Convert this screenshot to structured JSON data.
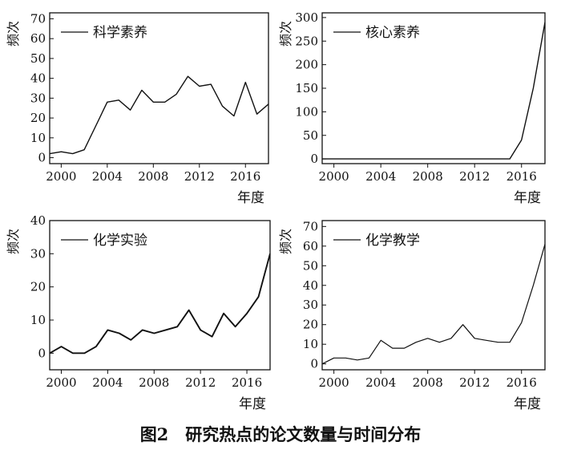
{
  "figure": {
    "caption": "图2　研究热点的论文数量与时间分布"
  },
  "chart_data": [
    {
      "type": "line",
      "ylabel": "频次",
      "xlabel": "年度",
      "legend": "top-left",
      "xlim": [
        1999,
        2018
      ],
      "ylim": [
        -3,
        73
      ],
      "xticks": [
        2000,
        2004,
        2008,
        2012,
        2016
      ],
      "yticks": [
        0,
        10,
        20,
        30,
        40,
        50,
        60,
        70
      ],
      "series": [
        {
          "name": "科学素养",
          "x": [
            1999,
            2000,
            2001,
            2002,
            2003,
            2004,
            2005,
            2006,
            2007,
            2008,
            2009,
            2010,
            2011,
            2012,
            2013,
            2014,
            2015,
            2016,
            2017,
            2018
          ],
          "y": [
            2,
            3,
            2,
            4,
            16,
            28,
            29,
            24,
            34,
            28,
            28,
            32,
            41,
            36,
            37,
            26,
            21,
            38,
            22,
            27
          ]
        }
      ]
    },
    {
      "type": "line",
      "ylabel": "频次",
      "xlabel": "年度",
      "legend": "top-left",
      "xlim": [
        1999,
        2018
      ],
      "ylim": [
        -10,
        310
      ],
      "xticks": [
        2000,
        2004,
        2008,
        2012,
        2016
      ],
      "yticks": [
        0,
        50,
        100,
        150,
        200,
        250,
        300
      ],
      "series": [
        {
          "name": "核心素养",
          "x": [
            1999,
            2000,
            2001,
            2002,
            2003,
            2004,
            2005,
            2006,
            2007,
            2008,
            2009,
            2010,
            2011,
            2012,
            2013,
            2014,
            2015,
            2016,
            2017,
            2018
          ],
          "y": [
            0,
            0,
            0,
            0,
            0,
            0,
            0,
            0,
            0,
            0,
            0,
            0,
            0,
            0,
            0,
            0,
            0,
            40,
            150,
            290
          ]
        }
      ]
    },
    {
      "type": "line",
      "ylabel": "频次",
      "xlabel": "年度",
      "legend": "top-left",
      "xlim": [
        1999,
        2018
      ],
      "ylim": [
        -5,
        40
      ],
      "xticks": [
        2000,
        2004,
        2008,
        2012,
        2016
      ],
      "yticks": [
        0,
        10,
        20,
        30,
        40
      ],
      "series": [
        {
          "name": "化学实验",
          "x": [
            1999,
            2000,
            2001,
            2002,
            2003,
            2004,
            2005,
            2006,
            2007,
            2008,
            2009,
            2010,
            2011,
            2012,
            2013,
            2014,
            2015,
            2016,
            2017,
            2018
          ],
          "y": [
            0,
            2,
            0,
            0,
            2,
            7,
            6,
            4,
            7,
            6,
            7,
            8,
            13,
            7,
            5,
            12,
            8,
            12,
            17,
            30
          ]
        }
      ]
    },
    {
      "type": "line",
      "ylabel": "频次",
      "xlabel": "年度",
      "legend": "top-left",
      "xlim": [
        1999,
        2018
      ],
      "ylim": [
        -3,
        73
      ],
      "xticks": [
        2000,
        2004,
        2008,
        2012,
        2016
      ],
      "yticks": [
        0,
        10,
        20,
        30,
        40,
        50,
        60,
        70
      ],
      "series": [
        {
          "name": "化学教学",
          "x": [
            1999,
            2000,
            2001,
            2002,
            2003,
            2004,
            2005,
            2006,
            2007,
            2008,
            2009,
            2010,
            2011,
            2012,
            2013,
            2014,
            2015,
            2016,
            2017,
            2018
          ],
          "y": [
            0,
            3,
            3,
            2,
            3,
            12,
            8,
            8,
            11,
            13,
            11,
            13,
            20,
            13,
            12,
            11,
            11,
            21,
            40,
            61
          ]
        }
      ]
    }
  ]
}
